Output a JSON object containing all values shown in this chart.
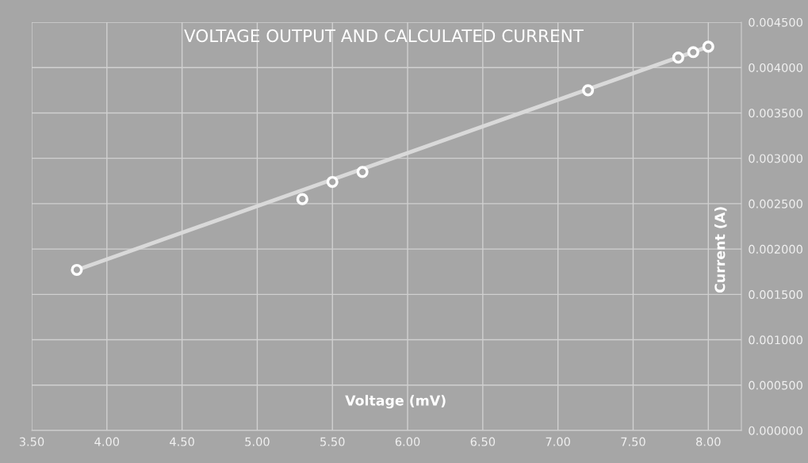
{
  "chart_data": {
    "type": "scatter",
    "title": "VOLTAGE OUTPUT AND CALCULATED CURRENT",
    "xlabel": "Voltage (mV)",
    "ylabel": "Current (A)",
    "x": [
      3.8,
      5.3,
      5.5,
      5.7,
      7.2,
      7.8,
      7.9,
      8.0
    ],
    "series": [
      {
        "color": "#ffffff",
        "marker": "circle",
        "values": [
          0.00177,
          0.00255,
          0.00274,
          0.00285,
          0.00375,
          0.00411,
          0.00417,
          0.00423
        ]
      },
      {
        "type": "line",
        "color": "#d9d9d9",
        "x": [
          3.8,
          8.0
        ],
        "values": [
          0.00177,
          0.00423
        ]
      }
    ],
    "xlim": [
      3.5,
      8.22
    ],
    "xticks": [
      {
        "value": 3.5,
        "label": "3.50"
      },
      {
        "value": 4.0,
        "label": "4.00"
      },
      {
        "value": 4.5,
        "label": "4.50"
      },
      {
        "value": 5.0,
        "label": "5.00"
      },
      {
        "value": 5.5,
        "label": "5.50"
      },
      {
        "value": 6.0,
        "label": "6.00"
      },
      {
        "value": 6.5,
        "label": "6.50"
      },
      {
        "value": 7.0,
        "label": "7.00"
      },
      {
        "value": 7.5,
        "label": "7.50"
      },
      {
        "value": 8.0,
        "label": "8.00"
      }
    ],
    "ylim": [
      0,
      0.0045
    ],
    "yticks": [
      {
        "value": 0,
        "label": "0.000000"
      },
      {
        "value": 0.0005,
        "label": "0.000500"
      },
      {
        "value": 0.001,
        "label": "0.001000"
      },
      {
        "value": 0.0015,
        "label": "0.001500"
      },
      {
        "value": 0.002,
        "label": "0.002000"
      },
      {
        "value": 0.0025,
        "label": "0.002500"
      },
      {
        "value": 0.003,
        "label": "0.003000"
      },
      {
        "value": 0.0035,
        "label": "0.003500"
      },
      {
        "value": 0.004,
        "label": "0.004000"
      },
      {
        "value": 0.0045,
        "label": "0.004500"
      }
    ],
    "grid": true,
    "legend": false
  }
}
